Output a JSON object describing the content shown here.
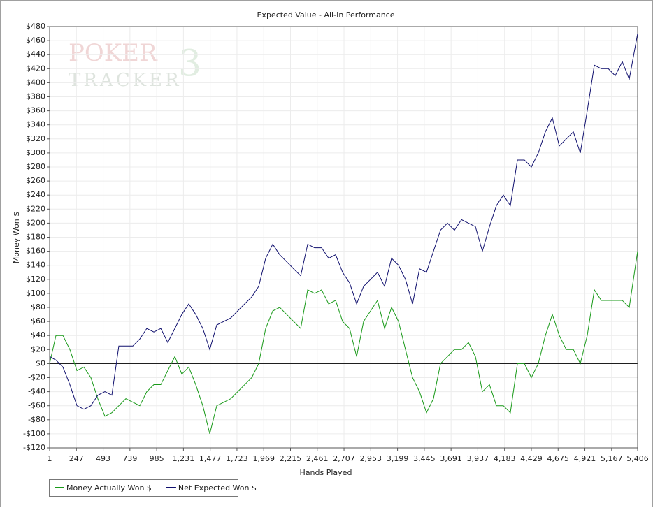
{
  "chart_data": {
    "type": "line",
    "title": "Expected Value - All-In Performance",
    "watermark": [
      "POKER",
      "TRACKER",
      "3"
    ],
    "xlabel": "Hands Played",
    "ylabel": "Money Won $",
    "xlim": [
      1,
      5406
    ],
    "ylim": [
      -120,
      480
    ],
    "xticks": [
      1,
      247,
      493,
      739,
      985,
      {
        "value": 1231,
        "label": "1,231"
      },
      {
        "value": 1477,
        "label": "1,477"
      },
      {
        "value": 1723,
        "label": "1,723"
      },
      {
        "value": 1969,
        "label": "1,969"
      },
      {
        "value": 2215,
        "label": "2,215"
      },
      {
        "value": 2461,
        "label": "2,461"
      },
      {
        "value": 2707,
        "label": "2,707"
      },
      {
        "value": 2953,
        "label": "2,953"
      },
      {
        "value": 3199,
        "label": "3,199"
      },
      {
        "value": 3445,
        "label": "3,445"
      },
      {
        "value": 3691,
        "label": "3,691"
      },
      {
        "value": 3937,
        "label": "3,937"
      },
      {
        "value": 4183,
        "label": "4,183"
      },
      {
        "value": 4429,
        "label": "4,429"
      },
      {
        "value": 4675,
        "label": "4,675"
      },
      {
        "value": 4921,
        "label": "4,921"
      },
      {
        "value": 5167,
        "label": "5,167"
      },
      {
        "value": 5406,
        "label": "5,406"
      }
    ],
    "yticks": [
      {
        "value": -120,
        "label": "-$120"
      },
      {
        "value": -100,
        "label": "-$100"
      },
      {
        "value": -80,
        "label": "-$80"
      },
      {
        "value": -60,
        "label": "-$60"
      },
      {
        "value": -40,
        "label": "-$40"
      },
      {
        "value": -20,
        "label": "-$20"
      },
      {
        "value": 0,
        "label": "$0"
      },
      {
        "value": 20,
        "label": "$20"
      },
      {
        "value": 40,
        "label": "$40"
      },
      {
        "value": 60,
        "label": "$60"
      },
      {
        "value": 80,
        "label": "$80"
      },
      {
        "value": 100,
        "label": "$100"
      },
      {
        "value": 120,
        "label": "$120"
      },
      {
        "value": 140,
        "label": "$140"
      },
      {
        "value": 160,
        "label": "$160"
      },
      {
        "value": 180,
        "label": "$180"
      },
      {
        "value": 200,
        "label": "$200"
      },
      {
        "value": 220,
        "label": "$220"
      },
      {
        "value": 240,
        "label": "$240"
      },
      {
        "value": 260,
        "label": "$260"
      },
      {
        "value": 280,
        "label": "$280"
      },
      {
        "value": 300,
        "label": "$300"
      },
      {
        "value": 320,
        "label": "$320"
      },
      {
        "value": 340,
        "label": "$340"
      },
      {
        "value": 360,
        "label": "$360"
      },
      {
        "value": 380,
        "label": "$380"
      },
      {
        "value": 400,
        "label": "$400"
      },
      {
        "value": 420,
        "label": "$420"
      },
      {
        "value": 440,
        "label": "$440"
      },
      {
        "value": 460,
        "label": "$460"
      },
      {
        "value": 480,
        "label": "$480"
      }
    ],
    "grid": true,
    "legend": "bottom-left",
    "x": [
      1,
      59,
      123,
      187,
      252,
      316,
      380,
      444,
      509,
      573,
      637,
      702,
      766,
      830,
      894,
      959,
      1023,
      1087,
      1152,
      1216,
      1280,
      1344,
      1409,
      1473,
      1537,
      1602,
      1666,
      1730,
      1794,
      1859,
      1923,
      1987,
      2052,
      2116,
      2180,
      2244,
      2309,
      2373,
      2437,
      2501,
      2566,
      2630,
      2694,
      2758,
      2823,
      2887,
      2951,
      3015,
      3080,
      3144,
      3208,
      3272,
      3337,
      3401,
      3465,
      3529,
      3594,
      3658,
      3722,
      3787,
      3851,
      3915,
      3979,
      4044,
      4108,
      4172,
      4236,
      4301,
      4365,
      4429,
      4493,
      4558,
      4622,
      4686,
      4750,
      4815,
      4879,
      4943,
      5008,
      5072,
      5136,
      5200,
      5265,
      5329,
      5406
    ],
    "series": [
      {
        "name": "Money Actually Won $",
        "color": "#1a9a1a",
        "values": [
          0,
          40,
          40,
          20,
          -10,
          -5,
          -20,
          -50,
          -75,
          -70,
          -60,
          -50,
          -55,
          -60,
          -40,
          -30,
          -30,
          -10,
          10,
          -15,
          -5,
          -30,
          -60,
          -100,
          -60,
          -55,
          -50,
          -40,
          -30,
          -20,
          0,
          50,
          75,
          80,
          70,
          60,
          50,
          105,
          100,
          105,
          85,
          90,
          60,
          50,
          10,
          60,
          75,
          90,
          50,
          80,
          60,
          20,
          -20,
          -40,
          -70,
          -50,
          0,
          10,
          20,
          20,
          30,
          10,
          -40,
          -30,
          -60,
          -60,
          -70,
          0,
          0,
          -20,
          0,
          40,
          70,
          40,
          20,
          20,
          0,
          40,
          105,
          90,
          90,
          90,
          90,
          80,
          160
        ]
      },
      {
        "name": "Net Expected Won $",
        "color": "#10106e",
        "values": [
          10,
          5,
          -5,
          -30,
          -60,
          -65,
          -60,
          -45,
          -40,
          -45,
          25,
          25,
          25,
          35,
          50,
          45,
          50,
          30,
          50,
          70,
          85,
          70,
          50,
          20,
          55,
          60,
          65,
          75,
          85,
          95,
          110,
          150,
          170,
          155,
          145,
          135,
          125,
          170,
          165,
          165,
          150,
          155,
          130,
          115,
          85,
          110,
          120,
          130,
          110,
          150,
          140,
          120,
          85,
          135,
          130,
          160,
          190,
          200,
          190,
          205,
          200,
          195,
          160,
          195,
          225,
          240,
          225,
          290,
          290,
          280,
          300,
          330,
          350,
          310,
          320,
          330,
          300,
          360,
          425,
          420,
          420,
          410,
          430,
          405,
          470
        ]
      }
    ]
  }
}
